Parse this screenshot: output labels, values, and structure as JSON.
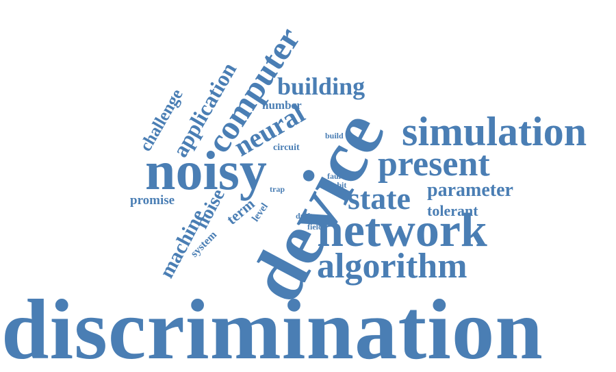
{
  "colors": {
    "word": "#4a7eb4",
    "background": "#ffffff"
  },
  "words": {
    "discrimination": "discrimination",
    "device": "device",
    "network": "network",
    "noisy": "noisy",
    "simulation": "simulation",
    "algorithm": "algorithm",
    "computer": "computer",
    "present": "present",
    "state": "state",
    "neural": "neural",
    "building": "building",
    "application": "application",
    "challenge": "challenge",
    "machine": "machine",
    "noise": "noise",
    "parameter": "parameter",
    "tolerant": "tolerant",
    "promise": "promise",
    "term": "term",
    "system": "system",
    "level": "level",
    "number": "number",
    "circuit": "circuit",
    "build": "build",
    "fault": "fault",
    "qubit": "qubit",
    "trap": "trap",
    "dmft": "dmft",
    "field": "field"
  }
}
